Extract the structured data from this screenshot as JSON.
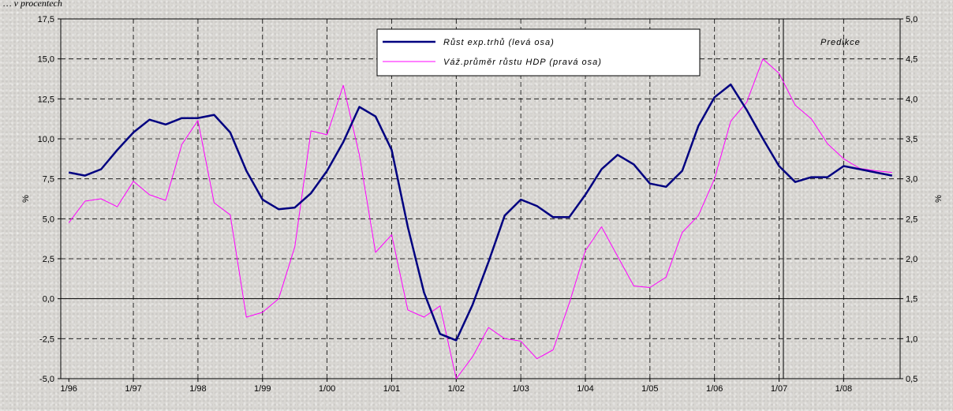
{
  "top_note": "… v procentech",
  "chart_data": {
    "type": "line",
    "x_labels": [
      "1/96",
      "1/97",
      "1/98",
      "1/99",
      "1/00",
      "1/01",
      "1/02",
      "1/03",
      "1/04",
      "1/05",
      "1/06",
      "1/07",
      "1/08"
    ],
    "x_range": [
      0,
      51
    ],
    "left_axis": {
      "label": "%",
      "ylim": [
        -5,
        17.5
      ],
      "ticks": [
        -5,
        -2.5,
        0,
        2.5,
        5,
        7.5,
        10,
        12.5,
        15,
        17.5
      ],
      "tick_labels": [
        "-5,0",
        "-2,5",
        "0,0",
        "2,5",
        "5,0",
        "7,5",
        "10,0",
        "12,5",
        "15,0",
        "17,5"
      ]
    },
    "right_axis": {
      "label": "%",
      "ylim": [
        0.5,
        5
      ],
      "ticks": [
        0.5,
        1,
        1.5,
        2,
        2.5,
        3,
        3.5,
        4,
        4.5,
        5
      ],
      "tick_labels": [
        "0,5",
        "1,0",
        "1,5",
        "2,0",
        "2,5",
        "3,0",
        "3,5",
        "4,0",
        "4,5",
        "5,0"
      ]
    },
    "grid": true,
    "legend_position": "top-center",
    "series": [
      {
        "name": "Růst exp.trhů (levá osa)",
        "axis": "left",
        "color": "#000080",
        "values": [
          7.9,
          7.7,
          8.1,
          9.3,
          10.4,
          11.2,
          10.9,
          11.3,
          11.3,
          11.5,
          10.4,
          8.0,
          6.2,
          5.6,
          5.7,
          6.6,
          8.0,
          9.8,
          12.0,
          11.4,
          9.3,
          4.5,
          0.4,
          -2.2,
          -2.6,
          -0.4,
          2.3,
          5.2,
          6.2,
          5.8,
          5.1,
          5.1,
          6.5,
          8.1,
          9.0,
          8.4,
          7.2,
          7.0,
          8.0,
          10.8,
          12.6,
          13.4,
          11.8,
          10.0,
          8.3,
          7.3,
          7.6,
          7.6,
          8.3,
          8.1,
          7.9,
          7.7
        ]
      },
      {
        "name": "Váž.průměr růstu HDP (pravá osa)",
        "axis": "right",
        "color": "#ff00ff",
        "values": [
          2.45,
          2.72,
          2.75,
          2.65,
          2.97,
          2.8,
          2.73,
          3.43,
          3.73,
          2.7,
          2.55,
          1.27,
          1.33,
          1.5,
          2.15,
          3.6,
          3.55,
          4.17,
          3.3,
          2.08,
          2.3,
          1.36,
          1.27,
          1.41,
          0.5,
          0.77,
          1.14,
          1.0,
          0.97,
          0.75,
          0.86,
          1.44,
          2.1,
          2.4,
          2.03,
          1.66,
          1.64,
          1.77,
          2.33,
          2.54,
          3.0,
          3.72,
          3.96,
          4.5,
          4.32,
          3.92,
          3.75,
          3.44,
          3.25,
          3.13,
          3.1,
          3.08
        ]
      }
    ],
    "vertical_marker": {
      "x": 45,
      "label": "Predikce"
    }
  }
}
